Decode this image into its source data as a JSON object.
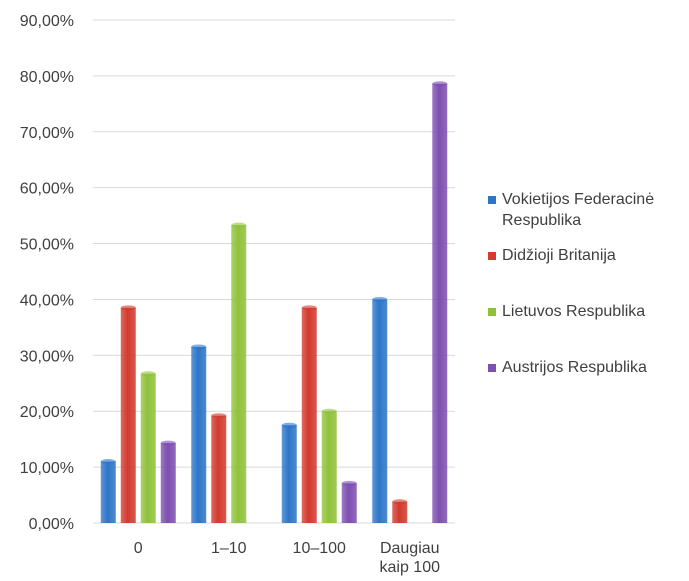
{
  "chart_data": {
    "type": "bar",
    "categories": [
      "0",
      "1–10",
      "10–100",
      "Daugiau kaip 100"
    ],
    "category_lines": [
      [
        "0"
      ],
      [
        "1–10"
      ],
      [
        "10–100"
      ],
      [
        "Daugiau",
        "kaip 100"
      ]
    ],
    "series": [
      {
        "name": "Vokietijos Federacinė Respublika",
        "name_lines": [
          "Vokietijos Federacinė",
          "Respublika"
        ],
        "color": "#2e75c8",
        "values": [
          11.0,
          31.5,
          17.5,
          40.0
        ]
      },
      {
        "name": "Didžioji Britanija",
        "name_lines": [
          "Didžioji Britanija"
        ],
        "color": "#d23a2e",
        "values": [
          38.5,
          19.2,
          38.5,
          3.8
        ]
      },
      {
        "name": "Lietuvos Respublika",
        "name_lines": [
          "Lietuvos Respublika"
        ],
        "color": "#8fc23a",
        "values": [
          26.7,
          53.3,
          20.0,
          0
        ]
      },
      {
        "name": "Austrijos Respublika",
        "name_lines": [
          "Austrijos Respublika"
        ],
        "color": "#7d4fb0",
        "values": [
          14.3,
          0,
          7.1,
          78.6
        ]
      }
    ],
    "y_ticks": [
      "0,00%",
      "10,00%",
      "20,00%",
      "30,00%",
      "40,00%",
      "50,00%",
      "60,00%",
      "70,00%",
      "80,00%",
      "90,00%"
    ],
    "ylim": [
      0,
      90
    ],
    "grid": true,
    "legend_position": "right",
    "title": "",
    "xlabel": "",
    "ylabel": ""
  }
}
